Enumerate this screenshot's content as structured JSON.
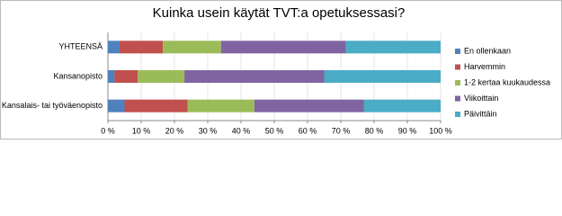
{
  "chart_data": {
    "type": "stacked-bar-horizontal",
    "title": "Kuinka usein käytät TVT:a opetuksessasi?",
    "categories": [
      "YHTEENSÄ",
      "Kansanopisto",
      "Kansalais- tai työväenopisto"
    ],
    "series": [
      {
        "name": "En ollenkaan",
        "color": "#4f81bd",
        "values": [
          3.5,
          2,
          5
        ]
      },
      {
        "name": "Harvemmin",
        "color": "#c0504d",
        "values": [
          13,
          7,
          19
        ]
      },
      {
        "name": "1-2 kertaa kuukaudessa",
        "color": "#9bbb59",
        "values": [
          17.5,
          14,
          20
        ]
      },
      {
        "name": "Viikoittain",
        "color": "#8064a2",
        "values": [
          37.5,
          42,
          33
        ]
      },
      {
        "name": "Päivittäin",
        "color": "#4bacc6",
        "values": [
          28.5,
          35,
          23
        ]
      }
    ],
    "xlim": [
      0,
      100
    ],
    "xticks": [
      {
        "value": 0,
        "label": "0 %"
      },
      {
        "value": 10,
        "label": "10 %"
      },
      {
        "value": 20,
        "label": "20 %"
      },
      {
        "value": 30,
        "label": "30 %"
      },
      {
        "value": 40,
        "label": "40 %"
      },
      {
        "value": 50,
        "label": "50 %"
      },
      {
        "value": 60,
        "label": "60 %"
      },
      {
        "value": 70,
        "label": "70 %"
      },
      {
        "value": 80,
        "label": "80 %"
      },
      {
        "value": 90,
        "label": "90 %"
      },
      {
        "value": 100,
        "label": "100 %"
      }
    ],
    "grid": true,
    "legend": "right"
  }
}
